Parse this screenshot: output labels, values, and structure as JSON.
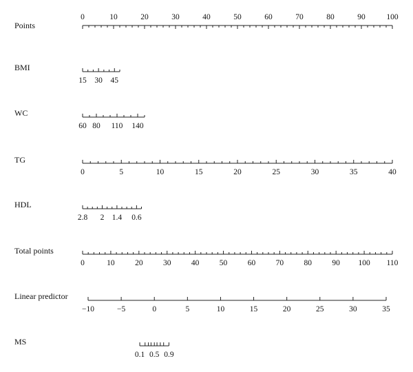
{
  "chart_data": {
    "type": "nomogram",
    "rows": [
      {
        "id": "points",
        "label": "Points",
        "scale_min": 0,
        "scale_max": 100,
        "minor_step": 2,
        "major_ticks": [
          0,
          10,
          20,
          30,
          40,
          50,
          60,
          70,
          80,
          90,
          100
        ],
        "tick_labels": [
          "0",
          "10",
          "20",
          "30",
          "40",
          "50",
          "60",
          "70",
          "80",
          "90",
          "100"
        ],
        "labels_above": true
      },
      {
        "id": "bmi",
        "label": "BMI",
        "points_min": 0,
        "points_max": 12,
        "value_start": 15,
        "value_end": 50,
        "value_step": 5,
        "major_ticks": [
          15,
          30,
          45
        ],
        "tick_labels": [
          "15",
          "30",
          "45"
        ]
      },
      {
        "id": "wc",
        "label": "WC",
        "points_min": 0,
        "points_max": 20,
        "value_start": 60,
        "value_end": 150,
        "value_step": 10,
        "major_ticks": [
          60,
          80,
          110,
          140
        ],
        "tick_labels": [
          "60",
          "80",
          "110",
          "140"
        ]
      },
      {
        "id": "tg",
        "label": "TG",
        "points_min": 0,
        "points_max": 100,
        "value_start": 0,
        "value_end": 40,
        "value_step": 1,
        "major_ticks": [
          0,
          5,
          10,
          15,
          20,
          25,
          30,
          35,
          40
        ],
        "tick_labels": [
          "0",
          "5",
          "10",
          "15",
          "20",
          "25",
          "30",
          "35",
          "40"
        ]
      },
      {
        "id": "hdl",
        "label": "HDL",
        "points_min": 0,
        "points_max": 19,
        "value_start": 2.8,
        "value_end": 0.4,
        "value_step": -0.2,
        "major_ticks": [
          2.8,
          2,
          1.4,
          0.6
        ],
        "tick_labels": [
          "2.8",
          "2",
          "1.4",
          "0.6"
        ]
      },
      {
        "id": "total_points",
        "label": "Total points",
        "scale_min": 0,
        "scale_max": 110,
        "minor_step": 2,
        "major_ticks": [
          0,
          10,
          20,
          30,
          40,
          50,
          60,
          70,
          80,
          90,
          100,
          110
        ],
        "tick_labels": [
          "0",
          "10",
          "20",
          "30",
          "40",
          "50",
          "60",
          "70",
          "80",
          "90",
          "100",
          "110"
        ]
      },
      {
        "id": "linear_predictor",
        "label": "Linear predictor",
        "scale_min": -10,
        "scale_max": 35,
        "major_ticks": [
          -10,
          -5,
          0,
          5,
          10,
          15,
          20,
          25,
          30,
          35
        ],
        "tick_labels": [
          "−10",
          "−5",
          "0",
          "5",
          "10",
          "15",
          "20",
          "25",
          "30",
          "35"
        ]
      },
      {
        "id": "ms",
        "label": "MS",
        "ticks_lp": [
          -2.2,
          -1.4,
          -0.9,
          -0.5,
          0,
          0.4,
          0.9,
          1.4,
          2.2
        ],
        "label_index": [
          0,
          4,
          8
        ],
        "tick_labels": [
          "0.1",
          "0.5",
          "0.9"
        ]
      }
    ]
  }
}
